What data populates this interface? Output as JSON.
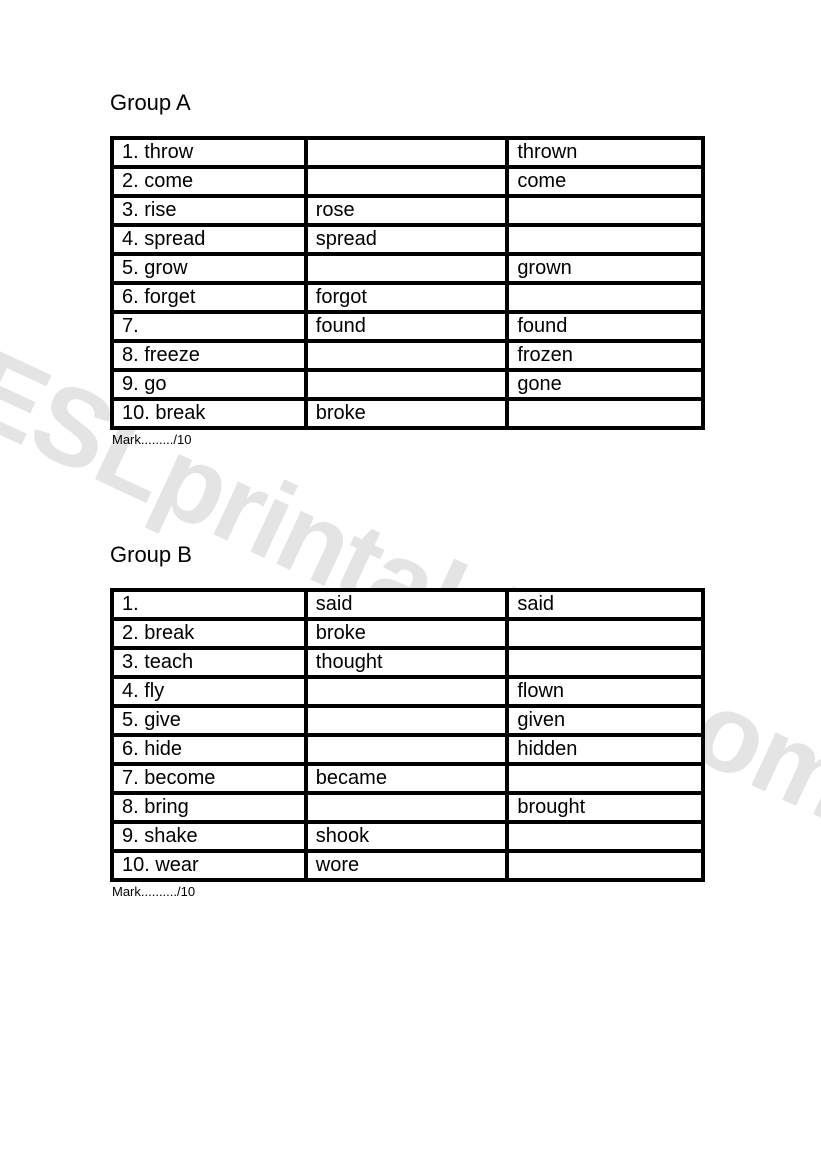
{
  "watermark_text": "ESLprintables.com",
  "watermark_color": "#e4e4e4",
  "text_color": "#000000",
  "background_color": "#ffffff",
  "border_color": "#000000",
  "font_family": "Arial",
  "title_fontsize": 22,
  "cell_fontsize": 20,
  "mark_fontsize": 13,
  "groupA": {
    "title": "Group A",
    "mark_label": "Mark........./10",
    "rows": [
      {
        "c1": "1. throw",
        "c2": "",
        "c3": "thrown"
      },
      {
        "c1": "2. come",
        "c2": "",
        "c3": "come"
      },
      {
        "c1": "3. rise",
        "c2": "rose",
        "c3": ""
      },
      {
        "c1": "4. spread",
        "c2": "spread",
        "c3": ""
      },
      {
        "c1": "5. grow",
        "c2": "",
        "c3": "grown"
      },
      {
        "c1": "6. forget",
        "c2": "forgot",
        "c3": ""
      },
      {
        "c1": "7.",
        "c2": "found",
        "c3": "found"
      },
      {
        "c1": "8. freeze",
        "c2": "",
        "c3": "frozen"
      },
      {
        "c1": "9. go",
        "c2": "",
        "c3": "gone"
      },
      {
        "c1": "10. break",
        "c2": "broke",
        "c3": ""
      }
    ]
  },
  "groupB": {
    "title": "Group B",
    "mark_label": "Mark........../10",
    "rows": [
      {
        "c1": "1.",
        "c2": "said",
        "c3": "said"
      },
      {
        "c1": "2. break",
        "c2": "broke",
        "c3": ""
      },
      {
        "c1": "3. teach",
        "c2": "thought",
        "c3": ""
      },
      {
        "c1": "4. fly",
        "c2": "",
        "c3": "flown"
      },
      {
        "c1": "5. give",
        "c2": "",
        "c3": "given"
      },
      {
        "c1": "6. hide",
        "c2": "",
        "c3": "hidden"
      },
      {
        "c1": "7. become",
        "c2": "became",
        "c3": ""
      },
      {
        "c1": "8. bring",
        "c2": "",
        "c3": "brought"
      },
      {
        "c1": "9. shake",
        "c2": "shook",
        "c3": ""
      },
      {
        "c1": "10. wear",
        "c2": "wore",
        "c3": ""
      }
    ]
  }
}
